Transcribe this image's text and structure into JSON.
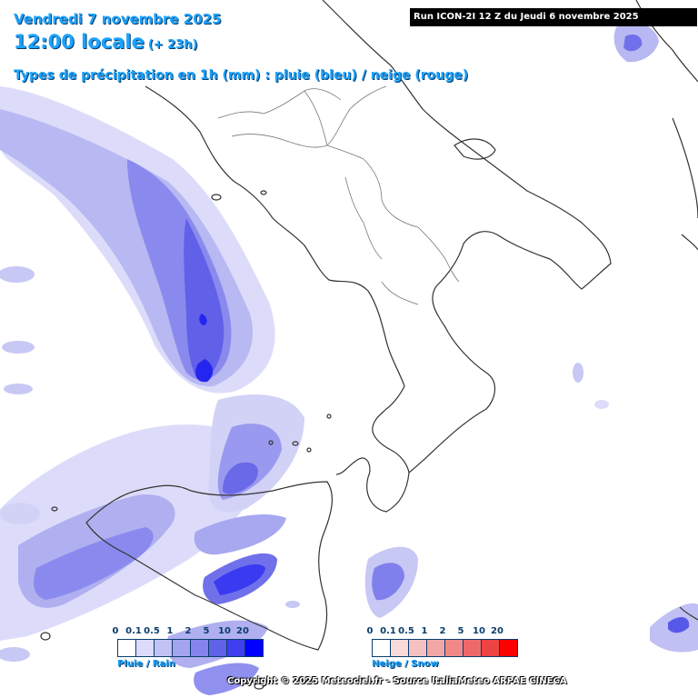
{
  "header": {
    "date": "Vendredi 7 novembre 2025",
    "time": "12:00 locale",
    "offset": "(+ 23h)",
    "precip_type": "Types de précipitation en 1h (mm) : pluie (bleu) / neige (rouge)"
  },
  "run_info": "Run ICON-2I 12 Z du Jeudi 6 novembre 2025",
  "legend_rain": {
    "label": "Pluie / Rain",
    "ticks": [
      "0",
      "0.1",
      "0.5",
      "1",
      "2",
      "5",
      "10",
      "20"
    ],
    "colors": [
      "#ffffff",
      "#dcdcfa",
      "#c2c2f5",
      "#a4a4f0",
      "#8484ec",
      "#6262e8",
      "#3f3ff0",
      "#0000ff"
    ]
  },
  "legend_snow": {
    "label": "Neige / Snow",
    "ticks": [
      "0",
      "0.1",
      "0.5",
      "1",
      "2",
      "5",
      "10",
      "20"
    ],
    "colors": [
      "#ffffff",
      "#f8dada",
      "#f5c0c0",
      "#f3a6a6",
      "#f08888",
      "#ee6a6a",
      "#ec4444",
      "#ff0000"
    ]
  },
  "copyright": "Copyright © 2025 Meteociel.fr - Source ItaliaMeteo ARPAE CINECA"
}
